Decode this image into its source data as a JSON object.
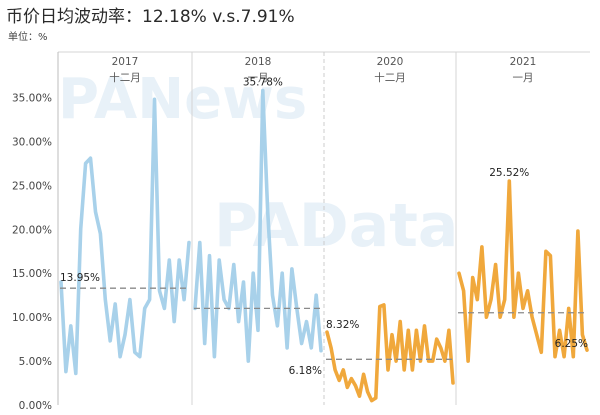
{
  "title": "币价日均波动率：12.18% v.s.7.91%",
  "unit_label": "单位：%",
  "watermarks": [
    "PANews",
    "PAData"
  ],
  "chart_data": {
    "type": "line",
    "title": "币价日均波动率：12.18% v.s.7.91%",
    "ylabel": "单位：%",
    "ylim": [
      0,
      37
    ],
    "yticks": [
      "0.00%",
      "5.00%",
      "10.00%",
      "15.00%",
      "20.00%",
      "25.00%",
      "30.00%",
      "35.00%"
    ],
    "grid": "vertical panel separators only",
    "panels": [
      {
        "year": "2017",
        "month": "十二月",
        "color": "#a8d1ea",
        "average": 13.3,
        "avg_label": "13.95%",
        "peak_label": "",
        "values": [
          14.0,
          3.8,
          9.0,
          3.6,
          20.0,
          27.5,
          28.1,
          22.0,
          19.5,
          12.0,
          7.3,
          11.5,
          5.5,
          8.0,
          12.0,
          6.0,
          5.5,
          11.0,
          12.0,
          34.8,
          13.0,
          11.0,
          16.5,
          9.5,
          16.5,
          12.0,
          18.5
        ]
      },
      {
        "year": "2018",
        "month": "一月",
        "color": "#a8d1ea",
        "average": 11.0,
        "avg_label": "",
        "peak_label": "35.78%",
        "values": [
          11.0,
          18.5,
          7.0,
          17.0,
          5.5,
          16.5,
          12.0,
          11.0,
          16.0,
          9.5,
          14.0,
          5.0,
          15.0,
          8.5,
          35.8,
          22.0,
          12.5,
          9.0,
          15.0,
          6.5,
          15.5,
          11.0,
          7.0,
          9.5,
          6.5,
          12.5,
          6.18
        ]
      },
      {
        "year": "2020",
        "month": "十二月",
        "color": "#f0a83c",
        "average": 5.2,
        "avg_label": "8.32%",
        "peak_label": "",
        "values": [
          8.3,
          6.5,
          4.0,
          2.8,
          4.0,
          2.0,
          3.0,
          2.2,
          1.0,
          3.5,
          1.5,
          0.5,
          0.8,
          11.2,
          11.4,
          4.0,
          8.0,
          5.0,
          9.5,
          4.0,
          8.5,
          4.0,
          8.5,
          5.0,
          9.0,
          5.0,
          5.0,
          7.5,
          6.5,
          5.0,
          8.5,
          2.5
        ]
      },
      {
        "year": "2021",
        "month": "一月",
        "color": "#f0a83c",
        "average": 10.5,
        "avg_label": "",
        "peak_label": "25.52%",
        "values": [
          15.0,
          13.0,
          5.0,
          14.5,
          12.0,
          18.0,
          10.0,
          12.0,
          16.0,
          10.0,
          12.0,
          25.5,
          10.0,
          15.0,
          11.0,
          13.0,
          10.0,
          8.0,
          6.0,
          17.5,
          17.0,
          5.5,
          8.5,
          5.5,
          11.0,
          5.5,
          19.8,
          8.0,
          6.25
        ]
      }
    ],
    "series_end_labels": [
      "6.18%",
      "6.25%"
    ]
  }
}
